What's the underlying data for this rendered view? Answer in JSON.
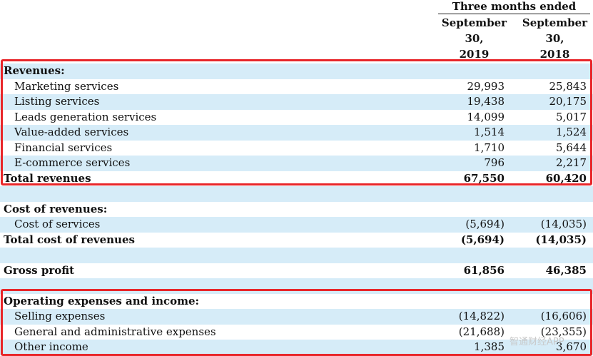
{
  "header": {
    "title": "Three months ended",
    "col1": [
      "September",
      "30,",
      "2019"
    ],
    "col2": [
      "September",
      "30,",
      "2018"
    ]
  },
  "rows": [
    {
      "label": "Revenues:",
      "v1": "",
      "v2": "",
      "bold": true,
      "indent": false
    },
    {
      "label": "Marketing services",
      "v1": "29,993",
      "v2": "25,843",
      "bold": false,
      "indent": true
    },
    {
      "label": "Listing services",
      "v1": "19,438",
      "v2": "20,175",
      "bold": false,
      "indent": true
    },
    {
      "label": "Leads generation services",
      "v1": "14,099",
      "v2": "5,017",
      "bold": false,
      "indent": true
    },
    {
      "label": "Value-added services",
      "v1": "1,514",
      "v2": "1,524",
      "bold": false,
      "indent": true
    },
    {
      "label": "Financial services",
      "v1": "1,710",
      "v2": "5,644",
      "bold": false,
      "indent": true
    },
    {
      "label": "E-commerce services",
      "v1": "796",
      "v2": "2,217",
      "bold": false,
      "indent": true
    },
    {
      "label": "Total revenues",
      "v1": "67,550",
      "v2": "60,420",
      "bold": true,
      "indent": false
    },
    {
      "label": "",
      "v1": "",
      "v2": "",
      "bold": false,
      "indent": false
    },
    {
      "label": "Cost of revenues:",
      "v1": "",
      "v2": "",
      "bold": true,
      "indent": false
    },
    {
      "label": "Cost of services",
      "v1": "(5,694)",
      "v2": "(14,035)",
      "bold": false,
      "indent": true
    },
    {
      "label": "Total cost of revenues",
      "v1": "(5,694)",
      "v2": "(14,035)",
      "bold": true,
      "indent": false
    },
    {
      "label": "",
      "v1": "",
      "v2": "",
      "bold": false,
      "indent": false
    },
    {
      "label": "Gross profit",
      "v1": "61,856",
      "v2": "46,385",
      "bold": true,
      "indent": false
    },
    {
      "label": "",
      "v1": "",
      "v2": "",
      "bold": false,
      "indent": false
    },
    {
      "label": "Operating expenses and income:",
      "v1": "",
      "v2": "",
      "bold": true,
      "indent": false
    },
    {
      "label": "Selling expenses",
      "v1": "(14,822)",
      "v2": "(16,606)",
      "bold": false,
      "indent": true
    },
    {
      "label": "General and administrative expenses",
      "v1": "(21,688)",
      "v2": "(23,355)",
      "bold": false,
      "indent": true
    },
    {
      "label": "Other income",
      "v1": "1,385",
      "v2": "3,670",
      "bold": false,
      "indent": true
    }
  ],
  "watermark": "智通财经APP",
  "colors": {
    "highlight": "#e8262a",
    "stripe": "#d6ecf8"
  }
}
